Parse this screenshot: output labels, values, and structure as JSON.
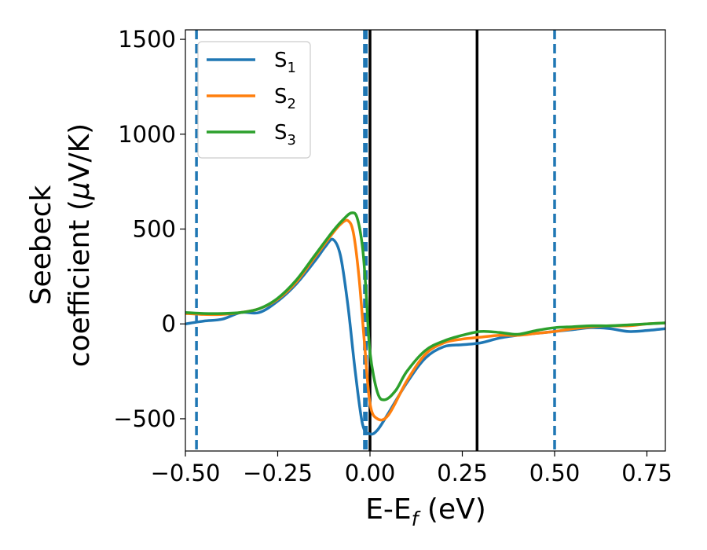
{
  "chart_data": {
    "type": "line",
    "xlabel": {
      "main": "E-E",
      "sub": "f",
      "unit": " (eV)"
    },
    "ylabel": {
      "line1": "Seebeck",
      "line2_text": "coefficient  (",
      "line2_mu": "μ",
      "line2_unit": "V/K)"
    },
    "xlim": [
      -0.5,
      0.8
    ],
    "ylim": [
      -670,
      1550
    ],
    "x_ticks": [
      {
        "value": -0.5,
        "label": "−0.50"
      },
      {
        "value": -0.25,
        "label": "−0.25"
      },
      {
        "value": 0.0,
        "label": "0.00"
      },
      {
        "value": 0.25,
        "label": "0.25"
      },
      {
        "value": 0.5,
        "label": "0.50"
      },
      {
        "value": 0.75,
        "label": "0.75"
      }
    ],
    "y_ticks": [
      {
        "value": -500,
        "label": "−500"
      },
      {
        "value": 0,
        "label": "0"
      },
      {
        "value": 500,
        "label": "500"
      },
      {
        "value": 1000,
        "label": "1000"
      },
      {
        "value": 1500,
        "label": "1500"
      }
    ],
    "grid": false,
    "legend_position": "top-left",
    "vlines_dashed": {
      "color": "#1f77b4",
      "x": [
        -0.47,
        -0.015,
        -0.01,
        0.5
      ]
    },
    "vlines_solid": {
      "color": "#000000",
      "x": [
        0.0,
        0.29
      ]
    },
    "series": [
      {
        "name": "S",
        "sub": "1",
        "color": "#1f77b4",
        "x": [
          -0.5,
          -0.45,
          -0.4,
          -0.35,
          -0.3,
          -0.25,
          -0.2,
          -0.15,
          -0.12,
          -0.1,
          -0.08,
          -0.06,
          -0.04,
          -0.02,
          0.0,
          0.02,
          0.05,
          0.1,
          0.15,
          0.2,
          0.25,
          0.3,
          0.35,
          0.4,
          0.45,
          0.5,
          0.55,
          0.6,
          0.65,
          0.7,
          0.75,
          0.8
        ],
        "y": [
          0,
          15,
          25,
          60,
          60,
          120,
          210,
          330,
          410,
          445,
          360,
          100,
          -250,
          -530,
          -580,
          -560,
          -470,
          -310,
          -180,
          -120,
          -110,
          -100,
          -75,
          -60,
          -50,
          -40,
          -30,
          -20,
          -25,
          -40,
          -35,
          -25
        ]
      },
      {
        "name": "S",
        "sub": "2",
        "color": "#ff7f0e",
        "x": [
          -0.5,
          -0.45,
          -0.4,
          -0.35,
          -0.3,
          -0.25,
          -0.2,
          -0.15,
          -0.1,
          -0.08,
          -0.06,
          -0.045,
          -0.03,
          -0.015,
          0.0,
          0.02,
          0.05,
          0.1,
          0.15,
          0.2,
          0.25,
          0.3,
          0.35,
          0.4,
          0.45,
          0.5,
          0.55,
          0.6,
          0.65,
          0.7,
          0.75,
          0.8
        ],
        "y": [
          55,
          50,
          50,
          60,
          80,
          130,
          220,
          350,
          480,
          525,
          545,
          480,
          250,
          -100,
          -420,
          -500,
          -480,
          -300,
          -160,
          -100,
          -80,
          -70,
          -60,
          -60,
          -50,
          -40,
          -25,
          -15,
          -10,
          -10,
          0,
          5
        ]
      },
      {
        "name": "S",
        "sub": "3",
        "color": "#2ca02c",
        "x": [
          -0.5,
          -0.45,
          -0.4,
          -0.35,
          -0.3,
          -0.25,
          -0.2,
          -0.15,
          -0.1,
          -0.07,
          -0.05,
          -0.035,
          -0.02,
          -0.01,
          0.0,
          0.02,
          0.04,
          0.07,
          0.1,
          0.15,
          0.2,
          0.25,
          0.3,
          0.35,
          0.4,
          0.45,
          0.5,
          0.55,
          0.6,
          0.65,
          0.7,
          0.75,
          0.8
        ],
        "y": [
          60,
          55,
          55,
          60,
          80,
          135,
          230,
          360,
          490,
          555,
          585,
          560,
          400,
          150,
          -150,
          -360,
          -400,
          -350,
          -250,
          -140,
          -90,
          -60,
          -40,
          -45,
          -55,
          -35,
          -20,
          -15,
          -10,
          -10,
          -5,
          0,
          5
        ]
      }
    ]
  }
}
